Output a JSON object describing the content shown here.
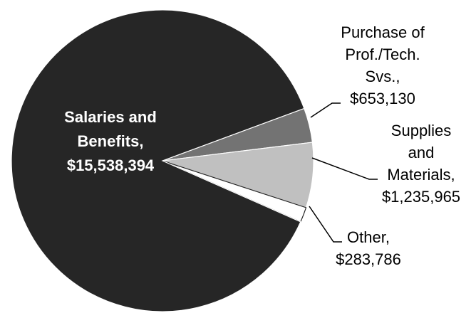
{
  "chart_data": {
    "type": "pie",
    "categories": [
      "Salaries and Benefits,",
      "Purchase of Prof./Tech. Svs.,",
      "Supplies and Materials,",
      "Other,"
    ],
    "values": [
      15538394,
      653130,
      1235965,
      283786
    ],
    "value_labels": [
      "$15,538,394",
      "$653,130",
      "$1,235,965",
      "$283,786"
    ],
    "colors": [
      "#262626",
      "#737373",
      "#c0c0c0",
      "#ffffff"
    ]
  }
}
